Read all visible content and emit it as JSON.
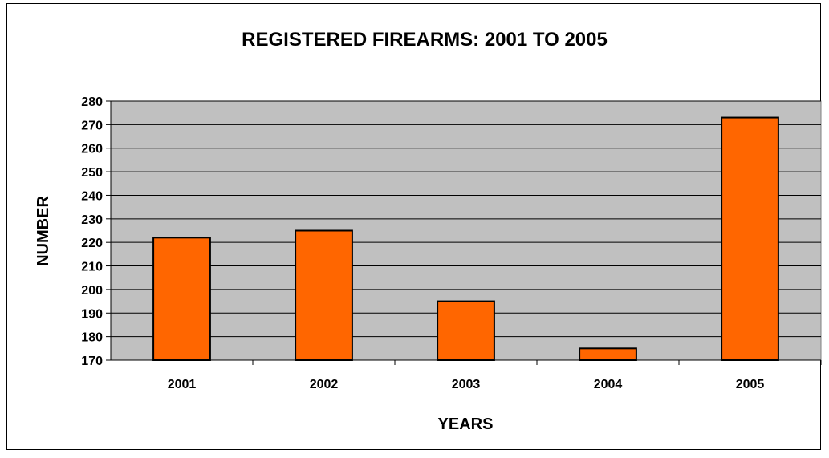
{
  "chart_data": {
    "type": "bar",
    "title": "REGISTERED FIREARMS:  2001 TO 2005",
    "xlabel": "YEARS",
    "ylabel": "NUMBER",
    "categories": [
      "2001",
      "2002",
      "2003",
      "2004",
      "2005"
    ],
    "values": [
      222,
      225,
      195,
      175,
      273
    ],
    "ylim": [
      170,
      280
    ],
    "yticks": [
      170,
      180,
      190,
      200,
      210,
      220,
      230,
      240,
      250,
      260,
      270,
      280
    ],
    "grid": true,
    "legend": "none",
    "colors": {
      "bar": "#ff6600",
      "plot_background": "#c0c0c0",
      "gridline": "#000000"
    }
  }
}
